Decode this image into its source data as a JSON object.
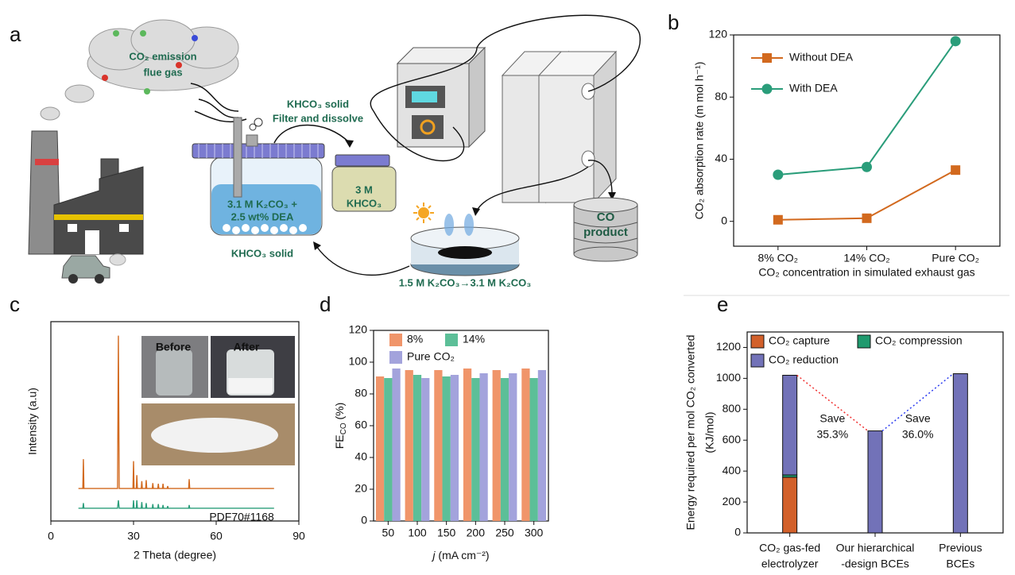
{
  "diagram": {
    "panel": "a",
    "cloud": [
      "CO₂ emission",
      "flue gas"
    ],
    "transfer": [
      "KHCO₃ solid",
      "Filter and dissolve"
    ],
    "absorber": [
      "3.1 M K₂CO₃ +",
      "2.5 wt% DEA"
    ],
    "precipitate": "KHCO₃ solid",
    "jar": [
      "3 M",
      "KHCO₃"
    ],
    "tank": [
      "CO",
      "product"
    ],
    "regeneration": "1.5 M K₂CO₃→3.1 M K₂CO₃"
  },
  "chart_data": [
    {
      "type": "line",
      "panel": "b",
      "categories": [
        "8% CO₂",
        "14% CO₂",
        "Pure CO₂"
      ],
      "series": [
        {
          "name": "Without DEA",
          "color": "#d2691e",
          "marker": "square",
          "values": [
            1,
            2,
            33
          ]
        },
        {
          "name": "With DEA",
          "color": "#2a9d7a",
          "marker": "circle",
          "values": [
            30,
            35,
            116
          ]
        }
      ],
      "ylim": [
        -16,
        120
      ],
      "yticks": [
        0,
        40,
        80,
        120
      ],
      "ylabel": "CO₂ absorption rate (m mol h⁻¹)",
      "xlabel": "CO₂ concentration in simulated exhaust gas",
      "legend": "upper left",
      "grid": false,
      "markers": true
    },
    {
      "type": "line",
      "panel": "c",
      "series": [
        {
          "color": "#d2691e",
          "x": [
            10,
            11.6,
            11.8,
            12.0,
            24.2,
            24.5,
            24.8,
            29.8,
            30.0,
            30.2,
            31.0,
            31.2,
            31.4,
            32.8,
            33.0,
            33.2,
            34.4,
            34.6,
            34.8,
            36.8,
            37.0,
            37.2,
            38.8,
            39.0,
            39.2,
            40.5,
            40.7,
            40.9,
            42.2,
            42.4,
            42.6,
            50.0,
            50.2,
            50.4,
            81
          ],
          "values": [
            16.3,
            16.3,
            31,
            16.3,
            16.3,
            93,
            16.3,
            16.3,
            30,
            16.3,
            16.3,
            23,
            16.3,
            16.3,
            20,
            16.3,
            16.3,
            20.5,
            16.3,
            16.3,
            19,
            16.3,
            16.3,
            18.7,
            16.3,
            16.3,
            18.7,
            16.3,
            16.3,
            17.5,
            16.3,
            16.3,
            21,
            16.3,
            16.3
          ]
        },
        {
          "name": "PDF70#1168",
          "color": "#2a9d7a",
          "x": [
            10,
            11.6,
            11.8,
            12.0,
            24.2,
            24.5,
            24.8,
            29.8,
            30.0,
            30.2,
            31.0,
            31.2,
            31.4,
            32.8,
            33.0,
            33.2,
            34.4,
            34.6,
            34.8,
            36.8,
            37.0,
            37.2,
            38.8,
            39.0,
            39.2,
            40.5,
            40.7,
            40.9,
            42.2,
            42.4,
            42.6,
            50.0,
            50.2,
            50.4,
            81
          ],
          "values": [
            6.4,
            6.4,
            9,
            6.4,
            6.4,
            10.4,
            6.4,
            6.4,
            10.4,
            6.4,
            6.4,
            10.4,
            6.4,
            6.4,
            9.5,
            6.4,
            6.4,
            9,
            6.4,
            6.4,
            8.5,
            6.4,
            6.4,
            8.5,
            6.4,
            6.4,
            8,
            6.4,
            6.4,
            7.5,
            6.4,
            6.4,
            8,
            6.4,
            6.4
          ]
        }
      ],
      "xlim": [
        0,
        90
      ],
      "xticks": [
        0,
        30,
        60,
        90
      ],
      "ylim": [
        0,
        100
      ],
      "xlabel": "2 Theta (degree)",
      "ylabel": "Intensity (a.u)",
      "photo_labels": [
        "Before",
        "After"
      ],
      "markers": false
    },
    {
      "type": "bar",
      "panel": "d",
      "categories": [
        50,
        100,
        150,
        200,
        250,
        300
      ],
      "series": [
        {
          "name": "8%",
          "color": "#f0956a",
          "values": [
            91,
            95,
            95,
            96,
            95,
            96
          ]
        },
        {
          "name": "14%",
          "color": "#5cbf98",
          "values": [
            90,
            92,
            91,
            90,
            90,
            90
          ]
        },
        {
          "name": "Pure CO₂",
          "color": "#a3a3dc",
          "values": [
            96,
            90,
            92,
            93,
            93,
            95
          ]
        }
      ],
      "ylim": [
        0,
        120
      ],
      "yticks": [
        0,
        20,
        40,
        60,
        80,
        100,
        120
      ],
      "ylabel": {
        "text": "FE",
        "subscript": "CO",
        "suffix": " (%)"
      },
      "xlabel": {
        "italic": "j",
        "text": " (mA cm⁻²)"
      },
      "legend": "upper left",
      "stacked": false
    },
    {
      "type": "bar",
      "panel": "e",
      "categories": [
        [
          "CO₂ gas-fed",
          "electrolyzer"
        ],
        [
          "Our hierarchical",
          "-design BCEs"
        ],
        [
          "Previous",
          "BCEs"
        ]
      ],
      "series": [
        {
          "name": "CO₂ capture",
          "color": "#d2602a",
          "values": [
            360,
            0,
            0
          ]
        },
        {
          "name": "CO₂ compression",
          "color": "#1f9a6e",
          "values": [
            15,
            0,
            0
          ]
        },
        {
          "name": "CO₂ reduction",
          "color": "#7272b8",
          "values": [
            645,
            660,
            1030
          ]
        }
      ],
      "ylim": [
        0,
        1300
      ],
      "yticks": [
        0,
        200,
        400,
        600,
        800,
        1000,
        1200
      ],
      "ylabel": [
        "Energy required per mol CO₂ converted",
        "(KJ/mol)"
      ],
      "annotations": [
        {
          "lines": [
            "Save",
            "35.3%"
          ],
          "color": "#f03030"
        },
        {
          "lines": [
            "Save",
            "36.0%"
          ],
          "color": "#2a3af0"
        }
      ],
      "legend": "upper left",
      "stacked": true
    }
  ]
}
